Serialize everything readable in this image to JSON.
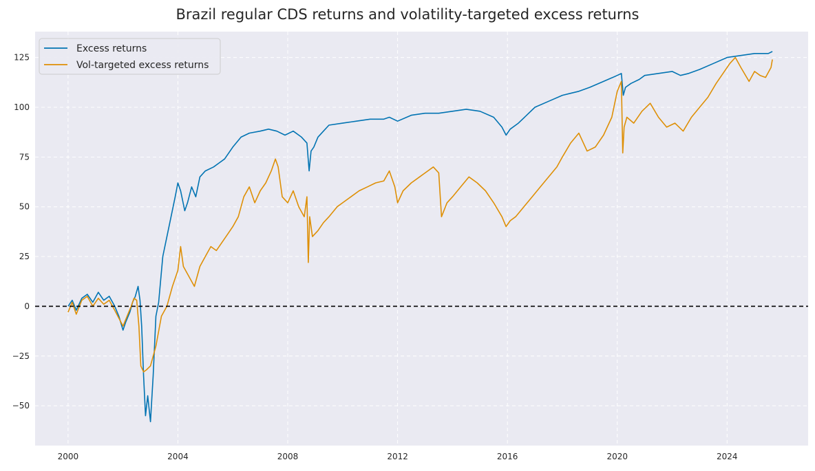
{
  "chart_data": {
    "type": "line",
    "title": "Brazil regular CDS returns and volatility-targeted excess returns",
    "xlabel": "",
    "ylabel": "",
    "xlim": [
      1998.8,
      2026.95
    ],
    "ylim": [
      -70,
      138
    ],
    "x_ticks": [
      2000,
      2004,
      2008,
      2012,
      2016,
      2020,
      2024
    ],
    "x_tick_labels": [
      "2000",
      "2004",
      "2008",
      "2012",
      "2016",
      "2020",
      "2024"
    ],
    "y_ticks": [
      -50,
      -25,
      0,
      25,
      50,
      75,
      100,
      125
    ],
    "y_tick_labels": [
      "−50",
      "−25",
      "0",
      "25",
      "50",
      "75",
      "100",
      "125"
    ],
    "grid": true,
    "legend_position": "top-left",
    "reference_line": {
      "y": 0,
      "style": "dashed",
      "color": "#000000"
    },
    "colors": {
      "background": "#eaeaf2",
      "grid": "#ffffff"
    },
    "series": [
      {
        "name": "Excess returns",
        "color": "#0173b2",
        "x": [
          2000.0,
          2000.15,
          2000.3,
          2000.5,
          2000.7,
          2000.9,
          2001.1,
          2001.3,
          2001.5,
          2001.7,
          2001.85,
          2002.0,
          2002.1,
          2002.25,
          2002.35,
          2002.45,
          2002.55,
          2002.62,
          2002.68,
          2002.75,
          2002.82,
          2002.9,
          2003.0,
          2003.1,
          2003.2,
          2003.3,
          2003.45,
          2003.6,
          2003.75,
          2003.9,
          2004.0,
          2004.1,
          2004.25,
          2004.35,
          2004.5,
          2004.65,
          2004.8,
          2005.0,
          2005.3,
          2005.5,
          2005.7,
          2006.0,
          2006.3,
          2006.6,
          2007.0,
          2007.3,
          2007.6,
          2007.9,
          2008.2,
          2008.5,
          2008.7,
          2008.78,
          2008.85,
          2008.95,
          2009.1,
          2009.3,
          2009.5,
          2010.0,
          2010.5,
          2011.0,
          2011.5,
          2011.7,
          2012.0,
          2012.5,
          2013.0,
          2013.5,
          2014.0,
          2014.5,
          2015.0,
          2015.5,
          2015.8,
          2015.95,
          2016.1,
          2016.4,
          2016.7,
          2017.0,
          2017.5,
          2018.0,
          2018.3,
          2018.6,
          2019.0,
          2019.5,
          2020.0,
          2020.15,
          2020.22,
          2020.3,
          2020.5,
          2020.8,
          2021.0,
          2021.5,
          2022.0,
          2022.3,
          2022.6,
          2023.0,
          2023.5,
          2024.0,
          2024.5,
          2025.0,
          2025.5,
          2025.65
        ],
        "y": [
          0,
          3,
          -2,
          4,
          6,
          2,
          7,
          3,
          5,
          0,
          -5,
          -12,
          -8,
          -3,
          2,
          5,
          10,
          3,
          -10,
          -35,
          -55,
          -45,
          -58,
          -35,
          -5,
          2,
          25,
          35,
          45,
          55,
          62,
          58,
          48,
          52,
          60,
          55,
          65,
          68,
          70,
          72,
          74,
          80,
          85,
          87,
          88,
          89,
          88,
          86,
          88,
          85,
          82,
          68,
          78,
          80,
          85,
          88,
          91,
          92,
          93,
          94,
          94,
          95,
          93,
          96,
          97,
          97,
          98,
          99,
          98,
          95,
          90,
          86,
          89,
          92,
          96,
          100,
          103,
          106,
          107,
          108,
          110,
          113,
          116,
          117,
          106,
          110,
          112,
          114,
          116,
          117,
          118,
          116,
          117,
          119,
          122,
          125,
          126,
          127,
          127,
          128
        ]
      },
      {
        "name": "Vol-targeted excess returns",
        "color": "#de8f05",
        "x": [
          2000.0,
          2000.15,
          2000.3,
          2000.5,
          2000.7,
          2000.9,
          2001.1,
          2001.3,
          2001.5,
          2001.7,
          2001.85,
          2002.0,
          2002.15,
          2002.3,
          2002.4,
          2002.5,
          2002.58,
          2002.65,
          2002.75,
          2002.85,
          2003.0,
          2003.2,
          2003.4,
          2003.6,
          2003.8,
          2004.0,
          2004.1,
          2004.2,
          2004.4,
          2004.6,
          2004.8,
          2005.0,
          2005.2,
          2005.4,
          2005.6,
          2005.8,
          2006.0,
          2006.2,
          2006.4,
          2006.6,
          2006.8,
          2007.0,
          2007.2,
          2007.4,
          2007.55,
          2007.65,
          2007.8,
          2008.0,
          2008.2,
          2008.4,
          2008.6,
          2008.7,
          2008.75,
          2008.8,
          2008.9,
          2009.1,
          2009.3,
          2009.5,
          2009.8,
          2010.0,
          2010.3,
          2010.6,
          2010.9,
          2011.2,
          2011.5,
          2011.7,
          2011.9,
          2012.0,
          2012.2,
          2012.5,
          2012.8,
          2013.1,
          2013.3,
          2013.5,
          2013.6,
          2013.8,
          2014.0,
          2014.3,
          2014.6,
          2014.9,
          2015.2,
          2015.5,
          2015.8,
          2015.95,
          2016.1,
          2016.3,
          2016.6,
          2016.9,
          2017.2,
          2017.5,
          2017.8,
          2018.0,
          2018.3,
          2018.6,
          2018.9,
          2019.2,
          2019.5,
          2019.8,
          2020.0,
          2020.15,
          2020.2,
          2020.25,
          2020.35,
          2020.6,
          2020.9,
          2021.2,
          2021.5,
          2021.8,
          2022.1,
          2022.4,
          2022.7,
          2023.0,
          2023.3,
          2023.6,
          2023.9,
          2024.1,
          2024.3,
          2024.5,
          2024.8,
          2025.0,
          2025.2,
          2025.4,
          2025.6,
          2025.65
        ],
        "y": [
          -3,
          2,
          -4,
          3,
          5,
          0,
          4,
          1,
          3,
          -2,
          -6,
          -10,
          -5,
          0,
          4,
          3,
          -10,
          -30,
          -33,
          -32,
          -30,
          -20,
          -5,
          0,
          10,
          18,
          30,
          20,
          15,
          10,
          20,
          25,
          30,
          28,
          32,
          36,
          40,
          45,
          55,
          60,
          52,
          58,
          62,
          68,
          74,
          70,
          55,
          52,
          58,
          50,
          45,
          55,
          22,
          45,
          35,
          38,
          42,
          45,
          50,
          52,
          55,
          58,
          60,
          62,
          63,
          68,
          60,
          52,
          58,
          62,
          65,
          68,
          70,
          67,
          45,
          52,
          55,
          60,
          65,
          62,
          58,
          52,
          45,
          40,
          43,
          45,
          50,
          55,
          60,
          65,
          70,
          75,
          82,
          87,
          78,
          80,
          86,
          95,
          108,
          113,
          77,
          90,
          95,
          92,
          98,
          102,
          95,
          90,
          92,
          88,
          95,
          100,
          105,
          112,
          118,
          122,
          125,
          120,
          113,
          118,
          116,
          115,
          120,
          124
        ]
      }
    ]
  }
}
